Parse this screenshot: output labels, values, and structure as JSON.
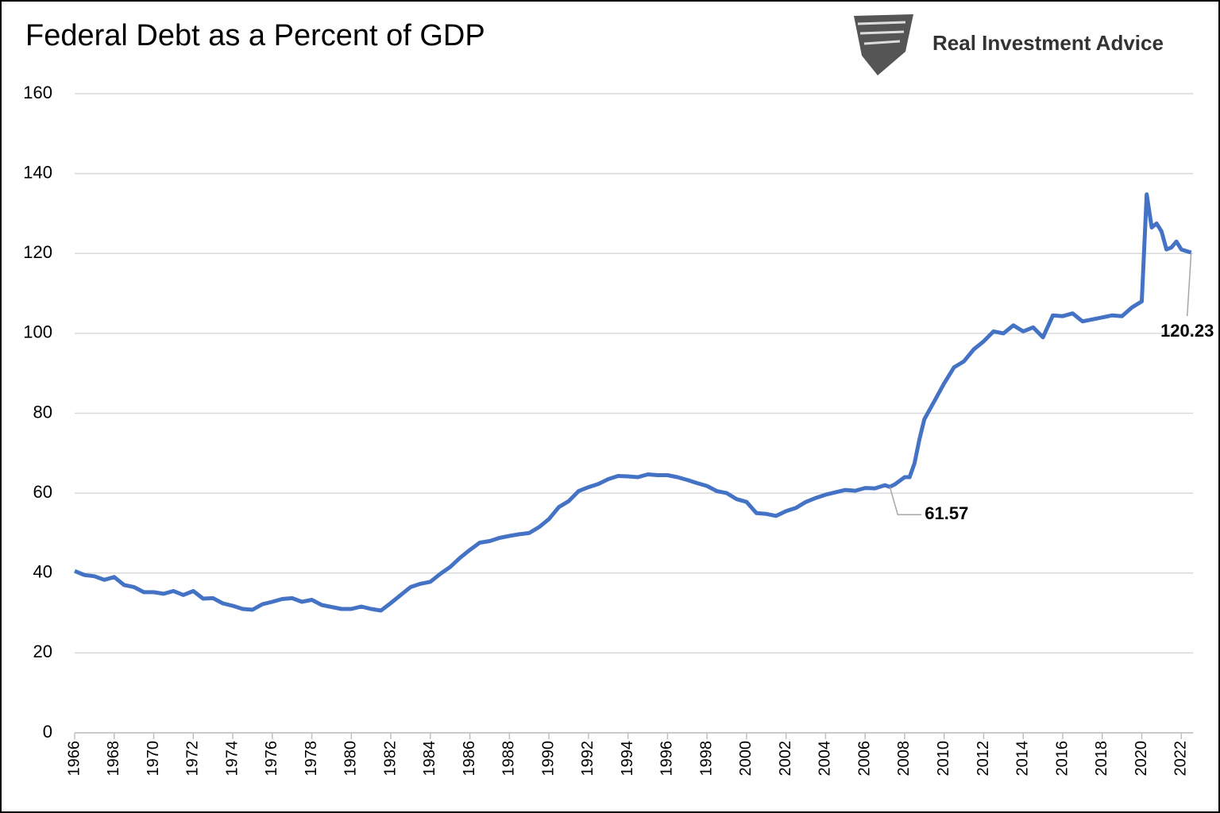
{
  "chart_data": {
    "type": "line",
    "title": "Federal Debt as a Percent of GDP",
    "logo": "Real Investment Advice",
    "x": [
      1966,
      1966.5,
      1967,
      1967.5,
      1968,
      1968.5,
      1969,
      1969.5,
      1970,
      1970.5,
      1971,
      1971.5,
      1972,
      1972.5,
      1973,
      1973.5,
      1974,
      1974.5,
      1975,
      1975.5,
      1976,
      1976.5,
      1977,
      1977.5,
      1978,
      1978.5,
      1979,
      1979.5,
      1980,
      1980.5,
      1981,
      1981.5,
      1982,
      1982.5,
      1983,
      1983.5,
      1984,
      1984.5,
      1985,
      1985.5,
      1986,
      1986.5,
      1987,
      1987.5,
      1988,
      1988.5,
      1989,
      1989.5,
      1990,
      1990.5,
      1991,
      1991.5,
      1992,
      1992.5,
      1993,
      1993.5,
      1994,
      1994.5,
      1995,
      1995.5,
      1996,
      1996.5,
      1997,
      1997.5,
      1998,
      1998.5,
      1999,
      1999.5,
      2000,
      2000.5,
      2001,
      2001.5,
      2002,
      2002.5,
      2003,
      2003.5,
      2004,
      2004.5,
      2005,
      2005.5,
      2006,
      2006.5,
      2007,
      2007.25,
      2007.5,
      2008,
      2008.25,
      2008.5,
      2008.75,
      2009,
      2009.5,
      2010,
      2010.5,
      2011,
      2011.5,
      2012,
      2012.5,
      2013,
      2013.5,
      2014,
      2014.5,
      2015,
      2015.5,
      2016,
      2016.5,
      2017,
      2017.5,
      2018,
      2018.5,
      2019,
      2019.5,
      2020,
      2020.25,
      2020.5,
      2020.75,
      2021,
      2021.25,
      2021.5,
      2021.75,
      2022,
      2022.5
    ],
    "series": [
      {
        "color": "#4472c4",
        "values": [
          40.5,
          39.5,
          39.2,
          38.3,
          39,
          37,
          36.5,
          35.2,
          35.2,
          34.8,
          35.5,
          34.5,
          35.5,
          33.6,
          33.7,
          32.4,
          31.8,
          31.0,
          30.8,
          32.2,
          32.8,
          33.5,
          33.7,
          32.8,
          33.3,
          32.0,
          31.5,
          31.0,
          31.0,
          31.6,
          31.0,
          30.6,
          32.5,
          34.5,
          36.5,
          37.3,
          37.8,
          39.8,
          41.5,
          43.8,
          45.8,
          47.6,
          48.0,
          48.8,
          49.3,
          49.7,
          50.0,
          51.5,
          53.5,
          56.5,
          58.0,
          60.5,
          61.5,
          62.3,
          63.5,
          64.3,
          64.2,
          64.0,
          64.7,
          64.5,
          64.5,
          64.0,
          63.3,
          62.5,
          61.8,
          60.5,
          60.0,
          58.5,
          57.8,
          55.0,
          54.8,
          54.3,
          55.5,
          56.3,
          57.8,
          58.8,
          59.6,
          60.2,
          60.8,
          60.6,
          61.3,
          61.2,
          62.0,
          61.57,
          62.2,
          64.0,
          64.0,
          67.5,
          73.5,
          78.5,
          83.0,
          87.5,
          91.5,
          93.0,
          96.0,
          98.0,
          100.5,
          100.0,
          102.0,
          100.5,
          101.5,
          99.0,
          104.5,
          104.3,
          105.0,
          103.0,
          103.5,
          104.0,
          104.5,
          104.3,
          106.5,
          108.0,
          134.8,
          126.5,
          127.5,
          125.5,
          121.0,
          121.5,
          123.0,
          121.0,
          120.23
        ]
      }
    ],
    "annotations": [
      {
        "x": 2007.25,
        "y": 61.57
      },
      {
        "x": 2022.5,
        "y": 120.23
      }
    ],
    "xlim": [
      1966,
      2022.6
    ],
    "xticks": [
      1966,
      1968,
      1970,
      1972,
      1974,
      1976,
      1978,
      1980,
      1982,
      1984,
      1986,
      1988,
      1990,
      1992,
      1994,
      1996,
      1998,
      2000,
      2002,
      2004,
      2006,
      2008,
      2010,
      2012,
      2014,
      2016,
      2018,
      2020,
      2022
    ],
    "ylim": [
      0,
      160
    ],
    "yticks": [
      0,
      20,
      40,
      60,
      80,
      100,
      120,
      140,
      160
    ],
    "grid": true
  }
}
